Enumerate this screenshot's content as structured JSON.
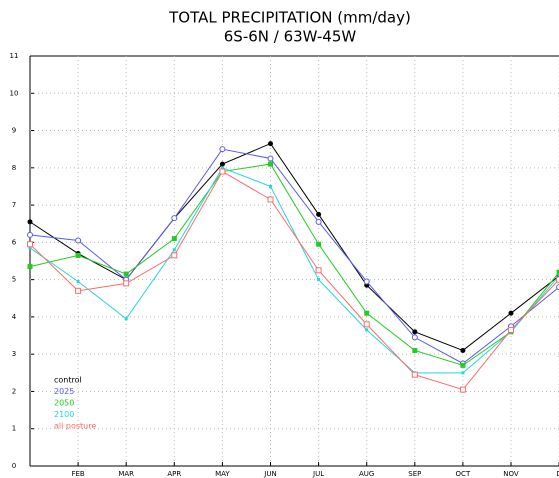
{
  "chart_data": {
    "type": "line",
    "title": "TOTAL PRECIPITATION (mm/day)",
    "subtitle": "6S-6N / 63W-45W",
    "categories": [
      null,
      "FEB",
      "MAR",
      "APR",
      "MAY",
      "JUN",
      "JUL",
      "AUG",
      "SEP",
      "OCT",
      "NOV",
      "D"
    ],
    "ylim": [
      0,
      11
    ],
    "yticks": [
      0,
      1,
      2,
      3,
      4,
      5,
      6,
      7,
      8,
      9,
      10,
      11
    ],
    "grid": true,
    "legend": "lower left",
    "series": [
      {
        "name": "control",
        "color": "#000000",
        "marker": "filled-circle",
        "values": [
          6.55,
          5.7,
          5.0,
          6.65,
          8.1,
          8.65,
          6.75,
          4.85,
          3.6,
          3.1,
          4.1,
          5.1
        ]
      },
      {
        "name": "2025",
        "color": "#5a5aee",
        "marker": "open-circle",
        "values": [
          6.2,
          6.05,
          5.0,
          6.65,
          8.5,
          8.25,
          6.55,
          4.95,
          3.45,
          2.75,
          3.75,
          4.8
        ]
      },
      {
        "name": "2050",
        "color": "#22cc22",
        "marker": "filled-square",
        "values": [
          5.35,
          5.65,
          5.15,
          6.1,
          7.9,
          8.1,
          5.95,
          4.1,
          3.1,
          2.7,
          3.6,
          5.2
        ]
      },
      {
        "name": "2100",
        "color": "#22d8d8",
        "marker": "small-square",
        "values": [
          5.85,
          4.95,
          3.95,
          5.8,
          8.0,
          7.5,
          5.0,
          3.65,
          2.5,
          2.5,
          3.6,
          5.1
        ]
      },
      {
        "name": "all posture",
        "color": "#ff6a6a",
        "marker": "open-square",
        "values": [
          5.95,
          4.7,
          4.9,
          5.65,
          7.9,
          7.15,
          5.25,
          3.8,
          2.45,
          2.05,
          3.65,
          5.0
        ]
      }
    ]
  }
}
